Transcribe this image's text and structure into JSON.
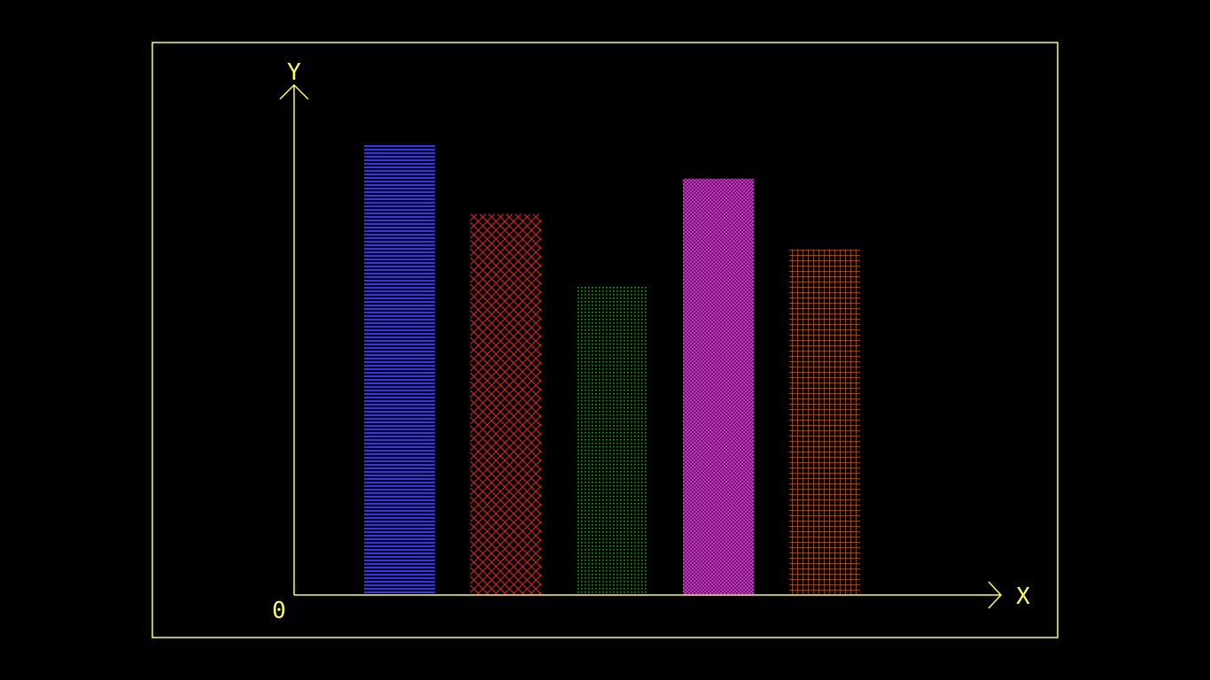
{
  "colors": {
    "background": "#000000",
    "frame": "#FFFF55",
    "axis": "#FFFF55"
  },
  "axis_text": {
    "y_label": "Y",
    "x_label": "X",
    "origin_label": "0"
  },
  "chart_data": {
    "type": "bar",
    "title": "",
    "xlabel": "X",
    "ylabel": "Y",
    "categories": [
      "",
      "",
      "",
      "",
      ""
    ],
    "values": [
      510,
      430,
      350,
      470,
      390
    ],
    "ylim": [
      0,
      590
    ],
    "grid": false,
    "legend": "none",
    "bars": [
      {
        "color": "#3333FF",
        "pattern": "horizontal-lines"
      },
      {
        "color": "#CC2222",
        "pattern": "cross-hatch"
      },
      {
        "color": "#22AA22",
        "pattern": "dots"
      },
      {
        "color": "#CC33CC",
        "pattern": "dense-weave"
      },
      {
        "color": "#E0701E",
        "pattern": "grid"
      }
    ]
  }
}
